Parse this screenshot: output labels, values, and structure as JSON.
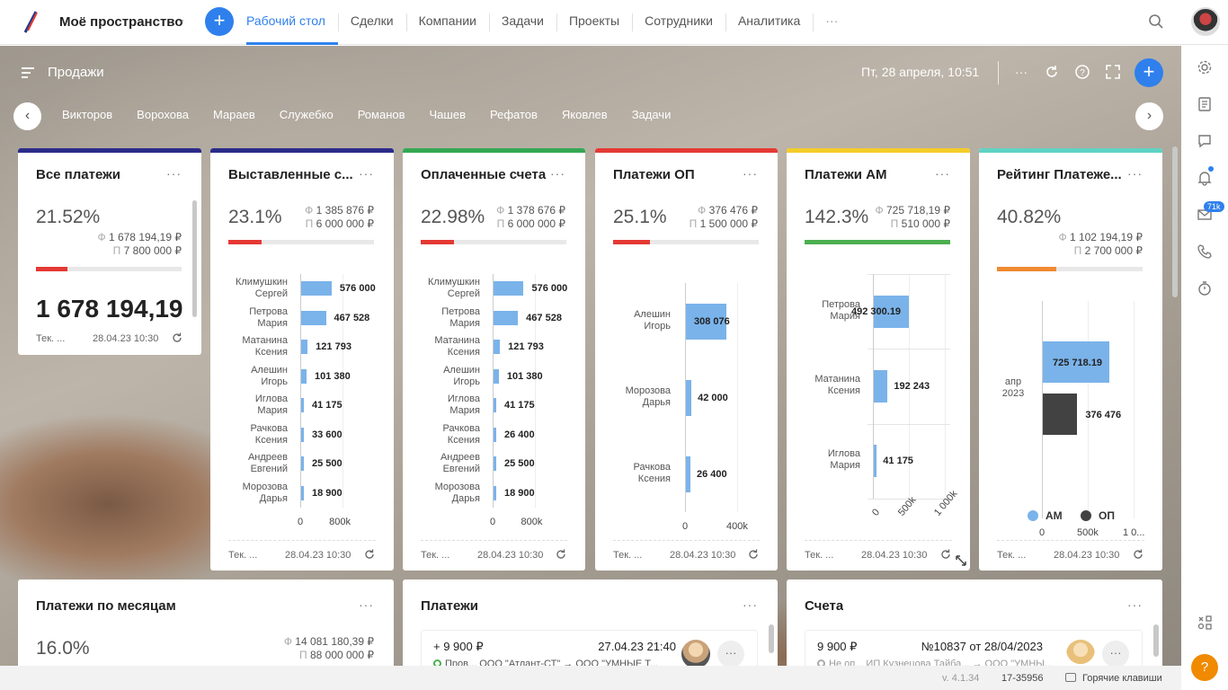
{
  "topbar": {
    "space": "Моё пространство",
    "nav": [
      "Рабочий стол",
      "Сделки",
      "Компании",
      "Задачи",
      "Проекты",
      "Сотрудники",
      "Аналитика"
    ],
    "more": "···"
  },
  "workspace": {
    "title": "Продажи",
    "date": "Пт, 28 апреля, 10:51",
    "more": "···",
    "filters": [
      "Викторов",
      "Ворохова",
      "Мараев",
      "Служебко",
      "Романов",
      "Чашев",
      "Рефатов",
      "Яковлев",
      "Задачи"
    ]
  },
  "cards": [
    {
      "title": "Все платежи",
      "color": "#2b2b8a",
      "pct": "21.52%",
      "fact": "1 678 194,19 ₽",
      "plan": "7 800 000 ₽",
      "progress": 0.2152,
      "progress_color": "#e53935",
      "big": "1 678 194,19",
      "foot_label": "Тек. ...",
      "foot_date": "28.04.23 10:30"
    },
    {
      "title": "Выставленные с...",
      "color": "#2b2b8a",
      "pct": "23.1%",
      "fact": "1 385 876 ₽",
      "plan": "6 000 000 ₽",
      "progress": 0.231,
      "progress_color": "#e53935",
      "foot_label": "Тек. ...",
      "foot_date": "28.04.23 10:30"
    },
    {
      "title": "Оплаченные счета",
      "color": "#34a853",
      "pct": "22.98%",
      "fact": "1 378 676 ₽",
      "plan": "6 000 000 ₽",
      "progress": 0.2298,
      "progress_color": "#e53935",
      "foot_label": "Тек. ...",
      "foot_date": "28.04.23 10:30"
    },
    {
      "title": "Платежи ОП",
      "color": "#e53935",
      "pct": "25.1%",
      "fact": "376 476 ₽",
      "plan": "1 500 000 ₽",
      "progress": 0.251,
      "progress_color": "#e53935",
      "foot_label": "Тек. ...",
      "foot_date": "28.04.23 10:30"
    },
    {
      "title": "Платежи АМ",
      "color": "#f5cc2a",
      "pct": "142.3%",
      "fact": "725 718,19 ₽",
      "plan": "510 000 ₽",
      "progress": 1.0,
      "progress_color": "#4caf50",
      "foot_label": "Тек. ...",
      "foot_date": "28.04.23 10:30"
    },
    {
      "title": "Рейтинг Платеже...",
      "color": "#5fd3c4",
      "pct": "40.82%",
      "fact": "1 102 194,19 ₽",
      "plan": "2 700 000 ₽",
      "progress": 0.4082,
      "progress_color": "#f08a30",
      "foot_label": "Тек. ...",
      "foot_date": "28.04.23 10:30"
    }
  ],
  "labels": {
    "fact_prefix": "Ф",
    "plan_prefix": "П"
  },
  "chart_data": [
    {
      "type": "bar",
      "orientation": "horizontal",
      "categories": [
        "Климушкин Сергей",
        "Петрова Мария",
        "Матанина Ксения",
        "Алешин Игорь",
        "Иглова Мария",
        "Рачкова Ксения",
        "Андреев Евгений",
        "Морозова Дарья"
      ],
      "values": [
        576000,
        467528,
        121793,
        101380,
        41175,
        33600,
        25500,
        18900
      ],
      "value_labels": [
        "576 000",
        "467 528",
        "121 793",
        "101 380",
        "41 175",
        "33 600",
        "25 500",
        "18 900"
      ],
      "xlim": [
        0,
        800000
      ],
      "x_ticks": [
        "0",
        "800k"
      ]
    },
    {
      "type": "bar",
      "orientation": "horizontal",
      "categories": [
        "Климушкин Сергей",
        "Петрова Мария",
        "Матанина Ксения",
        "Алешин Игорь",
        "Иглова Мария",
        "Рачкова Ксения",
        "Андреев Евгений",
        "Морозова Дарья"
      ],
      "values": [
        576000,
        467528,
        121793,
        101380,
        41175,
        26400,
        25500,
        18900
      ],
      "value_labels": [
        "576 000",
        "467 528",
        "121 793",
        "101 380",
        "41 175",
        "26 400",
        "25 500",
        "18 900"
      ],
      "xlim": [
        0,
        800000
      ],
      "x_ticks": [
        "0",
        "800k"
      ]
    },
    {
      "type": "bar",
      "orientation": "horizontal",
      "categories": [
        "Алешин Игорь",
        "Морозова Дарья",
        "Рачкова Ксения"
      ],
      "values": [
        308076,
        42000,
        26400
      ],
      "value_labels": [
        "308 076",
        "42 000",
        "26 400"
      ],
      "xlim": [
        0,
        400000
      ],
      "x_ticks": [
        "0",
        "400k"
      ]
    },
    {
      "type": "bar",
      "orientation": "horizontal",
      "categories": [
        "Петрова Мария",
        "Матанина Ксения",
        "Иглова Мария"
      ],
      "values": [
        492300.19,
        192243,
        41175
      ],
      "value_labels": [
        "492 300.19",
        "192 243",
        "41 175"
      ],
      "xlim": [
        0,
        1000000
      ],
      "x_ticks": [
        "0",
        "500k",
        "1 000k"
      ]
    },
    {
      "type": "bar",
      "orientation": "horizontal",
      "categories": [
        "апр 2023"
      ],
      "series": [
        {
          "name": "АМ",
          "values": [
            725718.19
          ],
          "labels": [
            "725 718.19"
          ],
          "color": "#7ab3ea"
        },
        {
          "name": "ОП",
          "values": [
            376476
          ],
          "labels": [
            "376 476"
          ],
          "color": "#424242"
        }
      ],
      "xlim": [
        0,
        1000000
      ],
      "x_ticks": [
        "0",
        "500k",
        "1 0..."
      ]
    }
  ],
  "bottom": {
    "months": {
      "title": "Платежи по месяцам",
      "pct": "16.0%",
      "fact": "14 081 180,39 ₽",
      "plan": "88 000 000 ₽"
    },
    "payments": {
      "title": "Платежи",
      "amount": "+ 9 900 ₽",
      "date": "27.04.23 21:40",
      "sub": "Пров... ООО \"Атлант-СТ\"  →  ООО \"УМНЫЕ Т..."
    },
    "invoices": {
      "title": "Счета",
      "amount": "9 900 ₽",
      "number": "№10837 от 28/04/2023",
      "sub": "Не оп... ИП Кузнецова Тайба...  →  ООО \"УМНЫ..."
    }
  },
  "status": {
    "version": "v. 4.1.34",
    "build": "17-35956",
    "hotkeys": "Горячие клавиши"
  },
  "side": {
    "badge": "71k",
    "help": "?"
  }
}
